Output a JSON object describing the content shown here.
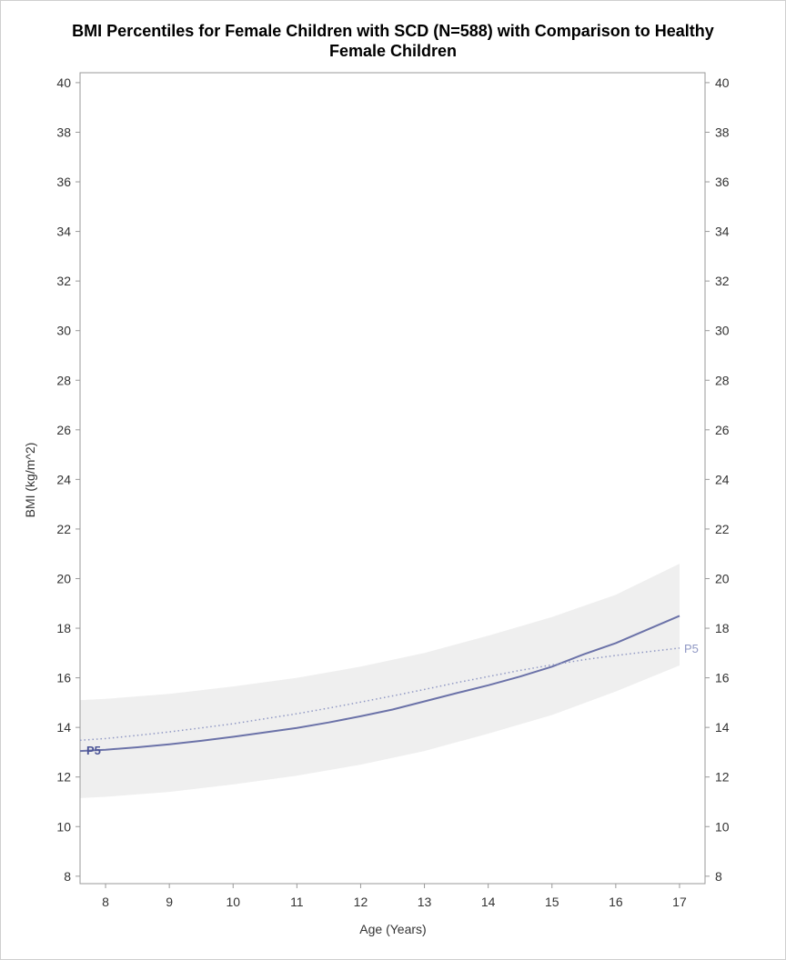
{
  "chart_data": {
    "type": "line",
    "title_line1": "BMI Percentiles for Female Children with SCD (N=588) with Comparison to Healthy",
    "title_line2": "Female Children",
    "xlabel": "Age (Years)",
    "ylabel": "BMI (kg/m^2)",
    "xlim": [
      7.6,
      17.4
    ],
    "ylim": [
      7.7,
      40.4
    ],
    "x_ticks": [
      8,
      9,
      10,
      11,
      12,
      13,
      14,
      15,
      16,
      17
    ],
    "y_ticks": [
      8,
      10,
      12,
      14,
      16,
      18,
      20,
      22,
      24,
      26,
      28,
      30,
      32,
      34,
      36,
      38,
      40
    ],
    "colors": {
      "scd_line": "#6b72a8",
      "healthy_line": "#9098c4",
      "band": "#efefef",
      "axis": "#999999"
    },
    "series": [
      {
        "label": "P5",
        "style": "solid",
        "x": [
          7.6,
          8,
          8.5,
          9,
          9.5,
          10,
          10.5,
          11,
          11.5,
          12,
          12.5,
          13,
          13.5,
          14,
          14.5,
          15,
          15.5,
          16,
          16.5,
          17
        ],
        "y": [
          13.05,
          13.1,
          13.2,
          13.32,
          13.46,
          13.62,
          13.8,
          13.98,
          14.2,
          14.45,
          14.72,
          15.05,
          15.38,
          15.7,
          16.05,
          16.45,
          16.95,
          17.4,
          17.95,
          18.5
        ]
      },
      {
        "label": "P5",
        "style": "dotted",
        "x": [
          7.6,
          8,
          8.5,
          9,
          9.5,
          10,
          10.5,
          11,
          11.5,
          12,
          12.5,
          13,
          13.5,
          14,
          14.5,
          15,
          15.5,
          16,
          16.5,
          17
        ],
        "y": [
          13.48,
          13.55,
          13.68,
          13.82,
          13.98,
          14.15,
          14.35,
          14.55,
          14.78,
          15.02,
          15.27,
          15.53,
          15.8,
          16.05,
          16.3,
          16.52,
          16.73,
          16.9,
          17.05,
          17.2
        ]
      }
    ],
    "band": {
      "x": [
        7.6,
        8,
        9,
        10,
        11,
        12,
        13,
        14,
        15,
        16,
        17
      ],
      "lower": [
        11.15,
        11.2,
        11.4,
        11.7,
        12.05,
        12.5,
        13.05,
        13.75,
        14.5,
        15.45,
        16.5
      ],
      "upper": [
        15.1,
        15.15,
        15.35,
        15.65,
        16.0,
        16.45,
        17.0,
        17.7,
        18.45,
        19.35,
        20.6
      ]
    }
  }
}
